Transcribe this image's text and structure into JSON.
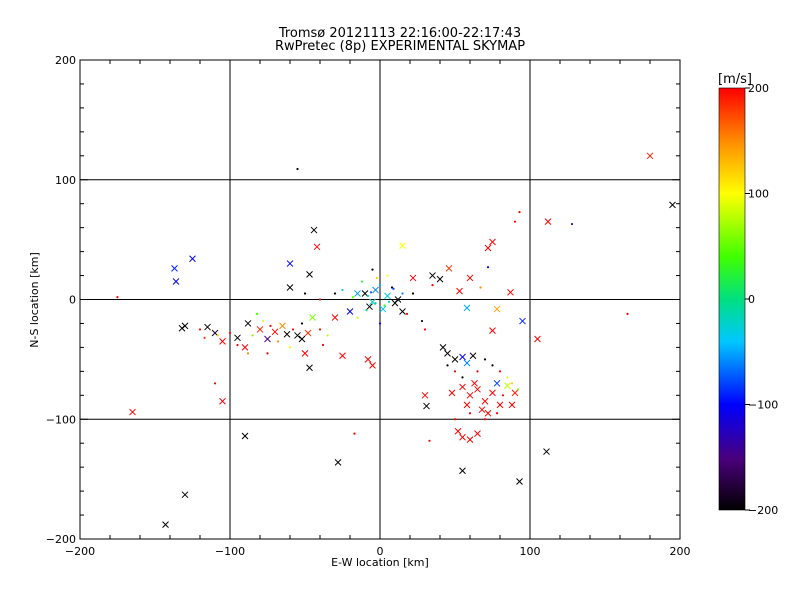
{
  "title_line1": "Tromsø 20121113 22:16:00-22:17:43",
  "title_line2": "RwPretec (8p) EXPERIMENTAL SKYMAP",
  "chart_data": {
    "type": "scatter",
    "xlabel": "E-W location [km]",
    "ylabel": "N-S location [km]",
    "xlim": [
      -200,
      200
    ],
    "ylim": [
      -200,
      200
    ],
    "xticks": [
      -200,
      -100,
      0,
      100,
      200
    ],
    "yticks": [
      -200,
      -100,
      0,
      100,
      200
    ],
    "grid": true,
    "colorbar": {
      "label": "[m/s]",
      "min": -200,
      "max": 200,
      "ticks": [
        200,
        100,
        0,
        -100,
        -200
      ],
      "colormap": "rainbow (black-purple-blue-cyan-green-yellow-orange-red)"
    },
    "markers": {
      "large": "x",
      "small": "dot"
    },
    "series": [
      {
        "marker": "x",
        "points": [
          {
            "x": 180,
            "y": 120,
            "v": 190
          },
          {
            "x": 195,
            "y": 79,
            "v": -200
          },
          {
            "x": -137,
            "y": 26,
            "v": -90
          },
          {
            "x": -125,
            "y": 34,
            "v": -100
          },
          {
            "x": -136,
            "y": 15,
            "v": -100
          },
          {
            "x": -60,
            "y": 30,
            "v": -100
          },
          {
            "x": -42,
            "y": 44,
            "v": 200
          },
          {
            "x": -44,
            "y": 58,
            "v": -200
          },
          {
            "x": 15,
            "y": 45,
            "v": 100
          },
          {
            "x": 75,
            "y": 48,
            "v": 200
          },
          {
            "x": 72,
            "y": 43,
            "v": 200
          },
          {
            "x": 112,
            "y": 65,
            "v": 200
          },
          {
            "x": 60,
            "y": 18,
            "v": 200
          },
          {
            "x": 46,
            "y": 26,
            "v": 180
          },
          {
            "x": 35,
            "y": 20,
            "v": -200
          },
          {
            "x": 53,
            "y": 7,
            "v": 200
          },
          {
            "x": 87,
            "y": 6,
            "v": 200
          },
          {
            "x": 78,
            "y": -8,
            "v": 140
          },
          {
            "x": 95,
            "y": -18,
            "v": -90
          },
          {
            "x": 105,
            "y": -33,
            "v": 200
          },
          {
            "x": 58,
            "y": -7,
            "v": -50
          },
          {
            "x": 75,
            "y": -26,
            "v": 200
          },
          {
            "x": -132,
            "y": -24,
            "v": -200
          },
          {
            "x": -130,
            "y": -22,
            "v": -200
          },
          {
            "x": -115,
            "y": -23,
            "v": -200
          },
          {
            "x": -110,
            "y": -28,
            "v": -180
          },
          {
            "x": -105,
            "y": -35,
            "v": 200
          },
          {
            "x": -95,
            "y": -32,
            "v": -200
          },
          {
            "x": -90,
            "y": -40,
            "v": 200
          },
          {
            "x": -88,
            "y": -20,
            "v": -200
          },
          {
            "x": -80,
            "y": -25,
            "v": 190
          },
          {
            "x": -75,
            "y": -33,
            "v": -150
          },
          {
            "x": -70,
            "y": -27,
            "v": 200
          },
          {
            "x": -65,
            "y": -22,
            "v": 150
          },
          {
            "x": -62,
            "y": -29,
            "v": -200
          },
          {
            "x": -55,
            "y": -30,
            "v": -200
          },
          {
            "x": -52,
            "y": -33,
            "v": -200
          },
          {
            "x": -48,
            "y": -28,
            "v": 180
          },
          {
            "x": -45,
            "y": -15,
            "v": 60
          },
          {
            "x": -50,
            "y": -45,
            "v": 200
          },
          {
            "x": -47,
            "y": -57,
            "v": -200
          },
          {
            "x": -25,
            "y": -47,
            "v": 200
          },
          {
            "x": -8,
            "y": -50,
            "v": 200
          },
          {
            "x": -5,
            "y": -55,
            "v": 200
          },
          {
            "x": -60,
            "y": 10,
            "v": -200
          },
          {
            "x": -47,
            "y": 21,
            "v": -200
          },
          {
            "x": -30,
            "y": -15,
            "v": 200
          },
          {
            "x": -10,
            "y": 5,
            "v": -200
          },
          {
            "x": 15,
            "y": -10,
            "v": -200
          },
          {
            "x": 10,
            "y": -3,
            "v": -200
          },
          {
            "x": 22,
            "y": 18,
            "v": 200
          },
          {
            "x": 40,
            "y": 17,
            "v": -200
          },
          {
            "x": -165,
            "y": -94,
            "v": 200
          },
          {
            "x": -105,
            "y": -85,
            "v": 200
          },
          {
            "x": -90,
            "y": -114,
            "v": -200
          },
          {
            "x": -130,
            "y": -163,
            "v": -200
          },
          {
            "x": -143,
            "y": -188,
            "v": -200
          },
          {
            "x": -28,
            "y": -136,
            "v": -200
          },
          {
            "x": 55,
            "y": -143,
            "v": -200
          },
          {
            "x": 93,
            "y": -152,
            "v": -200
          },
          {
            "x": 111,
            "y": -127,
            "v": -200
          },
          {
            "x": 31,
            "y": -89,
            "v": -200
          },
          {
            "x": 30,
            "y": -80,
            "v": 200
          },
          {
            "x": 42,
            "y": -40,
            "v": -200
          },
          {
            "x": 45,
            "y": -45,
            "v": -200
          },
          {
            "x": 50,
            "y": -50,
            "v": -200
          },
          {
            "x": 55,
            "y": -48,
            "v": -100
          },
          {
            "x": 58,
            "y": -53,
            "v": -60
          },
          {
            "x": 62,
            "y": -47,
            "v": -200
          },
          {
            "x": 52,
            "y": -110,
            "v": 200
          },
          {
            "x": 55,
            "y": -115,
            "v": 200
          },
          {
            "x": 65,
            "y": -112,
            "v": 200
          },
          {
            "x": 60,
            "y": -117,
            "v": 200
          },
          {
            "x": 48,
            "y": -78,
            "v": 200
          },
          {
            "x": 55,
            "y": -73,
            "v": 200
          },
          {
            "x": 60,
            "y": -80,
            "v": 200
          },
          {
            "x": 65,
            "y": -75,
            "v": 200
          },
          {
            "x": 70,
            "y": -85,
            "v": 200
          },
          {
            "x": 75,
            "y": -78,
            "v": 200
          },
          {
            "x": 80,
            "y": -88,
            "v": 200
          },
          {
            "x": 85,
            "y": -72,
            "v": 80
          },
          {
            "x": 78,
            "y": -70,
            "v": -80
          },
          {
            "x": 90,
            "y": -78,
            "v": 190
          },
          {
            "x": 68,
            "y": -92,
            "v": 200
          },
          {
            "x": 58,
            "y": -88,
            "v": 200
          },
          {
            "x": 72,
            "y": -95,
            "v": 200
          },
          {
            "x": 88,
            "y": -88,
            "v": 200
          },
          {
            "x": 63,
            "y": -70,
            "v": 200
          },
          {
            "x": -15,
            "y": 5,
            "v": -50
          },
          {
            "x": -5,
            "y": -2,
            "v": -20
          },
          {
            "x": 5,
            "y": 3,
            "v": -30
          },
          {
            "x": -3,
            "y": 8,
            "v": -60
          },
          {
            "x": 2,
            "y": -8,
            "v": -40
          },
          {
            "x": -20,
            "y": -10,
            "v": -100
          },
          {
            "x": 12,
            "y": 0,
            "v": -200
          },
          {
            "x": -7,
            "y": -6,
            "v": -200
          }
        ]
      },
      {
        "marker": "dot",
        "points": [
          {
            "x": -55,
            "y": 109,
            "v": -200
          },
          {
            "x": 93,
            "y": 73,
            "v": 200
          },
          {
            "x": 128,
            "y": 63,
            "v": -130
          },
          {
            "x": -175,
            "y": 2,
            "v": 200
          },
          {
            "x": 165,
            "y": -12,
            "v": 200
          },
          {
            "x": -110,
            "y": -70,
            "v": 200
          },
          {
            "x": -17,
            "y": -112,
            "v": 200
          },
          {
            "x": 33,
            "y": -118,
            "v": 200
          },
          {
            "x": 72,
            "y": 27,
            "v": -100
          },
          {
            "x": 67,
            "y": 10,
            "v": 150
          },
          {
            "x": 80,
            "y": -60,
            "v": 200
          },
          {
            "x": 90,
            "y": 65,
            "v": 200
          },
          {
            "x": -5,
            "y": 25,
            "v": -200
          },
          {
            "x": 5,
            "y": 20,
            "v": 100
          },
          {
            "x": -12,
            "y": 15,
            "v": 20
          },
          {
            "x": 0,
            "y": 12,
            "v": -50
          },
          {
            "x": 8,
            "y": 10,
            "v": -200
          },
          {
            "x": -8,
            "y": 3,
            "v": -20
          },
          {
            "x": -3,
            "y": -3,
            "v": -10
          },
          {
            "x": 3,
            "y": -5,
            "v": 30
          },
          {
            "x": -18,
            "y": 2,
            "v": 50
          },
          {
            "x": 15,
            "y": 5,
            "v": -60
          },
          {
            "x": -2,
            "y": 18,
            "v": 120
          },
          {
            "x": 18,
            "y": -12,
            "v": 200
          },
          {
            "x": -15,
            "y": -15,
            "v": 80
          },
          {
            "x": 0,
            "y": -20,
            "v": -100
          },
          {
            "x": -25,
            "y": 8,
            "v": -40
          },
          {
            "x": 22,
            "y": 5,
            "v": -200
          },
          {
            "x": -6,
            "y": 6,
            "v": -70
          },
          {
            "x": 6,
            "y": -2,
            "v": -30
          },
          {
            "x": -9,
            "y": -9,
            "v": 0
          },
          {
            "x": 9,
            "y": 9,
            "v": -80
          },
          {
            "x": -120,
            "y": -25,
            "v": 200
          },
          {
            "x": -117,
            "y": -32,
            "v": 180
          },
          {
            "x": -108,
            "y": -30,
            "v": 120
          },
          {
            "x": -100,
            "y": -28,
            "v": 200
          },
          {
            "x": -95,
            "y": -38,
            "v": 200
          },
          {
            "x": -85,
            "y": -30,
            "v": 60
          },
          {
            "x": -82,
            "y": -12,
            "v": 40
          },
          {
            "x": -78,
            "y": -18,
            "v": 90
          },
          {
            "x": -73,
            "y": -22,
            "v": 200
          },
          {
            "x": -68,
            "y": -35,
            "v": 150
          },
          {
            "x": -58,
            "y": -25,
            "v": 200
          },
          {
            "x": -52,
            "y": -20,
            "v": -200
          },
          {
            "x": -40,
            "y": -25,
            "v": 200
          },
          {
            "x": -35,
            "y": -30,
            "v": 80
          },
          {
            "x": -38,
            "y": -38,
            "v": 200
          },
          {
            "x": -60,
            "y": -40,
            "v": 100
          },
          {
            "x": -75,
            "y": -45,
            "v": 200
          },
          {
            "x": -88,
            "y": -45,
            "v": 150
          },
          {
            "x": 45,
            "y": -55,
            "v": -200
          },
          {
            "x": 50,
            "y": -60,
            "v": 200
          },
          {
            "x": 55,
            "y": -65,
            "v": -200
          },
          {
            "x": 65,
            "y": -60,
            "v": 200
          },
          {
            "x": 70,
            "y": -50,
            "v": -200
          },
          {
            "x": 75,
            "y": -55,
            "v": -200
          },
          {
            "x": 85,
            "y": -65,
            "v": 90
          },
          {
            "x": 88,
            "y": -70,
            "v": 120
          },
          {
            "x": 92,
            "y": -75,
            "v": 60
          },
          {
            "x": 82,
            "y": -80,
            "v": 200
          },
          {
            "x": 60,
            "y": -95,
            "v": 200
          },
          {
            "x": 70,
            "y": -100,
            "v": 200
          },
          {
            "x": 50,
            "y": -100,
            "v": 200
          },
          {
            "x": 78,
            "y": -95,
            "v": 200
          },
          {
            "x": 35,
            "y": 12,
            "v": 200
          },
          {
            "x": 28,
            "y": -18,
            "v": -200
          },
          {
            "x": 30,
            "y": -25,
            "v": 200
          },
          {
            "x": -30,
            "y": 5,
            "v": -200
          },
          {
            "x": -40,
            "y": 0,
            "v": 200
          },
          {
            "x": -50,
            "y": 5,
            "v": -200
          }
        ]
      }
    ]
  }
}
